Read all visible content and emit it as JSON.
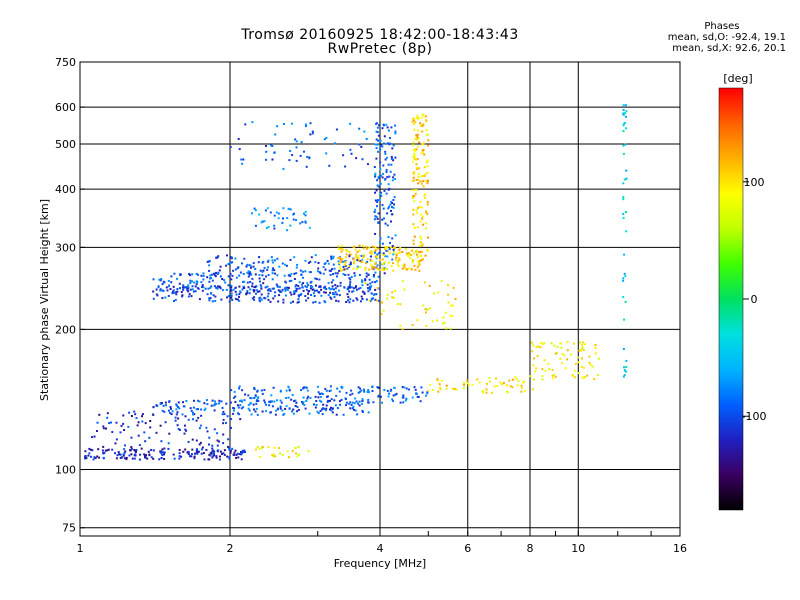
{
  "chart_data": {
    "type": "scatter",
    "title": "Tromsø 20160925 18:42:00-18:43:43",
    "subtitle": "RwPretec (8p)",
    "xlabel": "Frequency [MHz]",
    "ylabel": "Stationary phase Virtual Height [km]",
    "x_scale": "log",
    "y_scale": "log",
    "xlim": [
      1,
      16
    ],
    "ylim": [
      72,
      750
    ],
    "xticks": [
      1,
      2,
      4,
      6,
      8,
      10,
      16
    ],
    "yticks": [
      75,
      100,
      200,
      300,
      400,
      500,
      600,
      750
    ],
    "grid": true,
    "phases": {
      "title": "Phases",
      "o_line": "mean, sd,O: -92.4, 19.1",
      "x_line": "mean, sd,X:  92.6, 20.1"
    },
    "colorbar": {
      "label": "[deg]",
      "ticks": [
        100,
        0,
        -100
      ],
      "range": [
        -180,
        180
      ],
      "colors": [
        "#000000",
        "#3a0060",
        "#2020c0",
        "#0060ff",
        "#00b4ff",
        "#00e0e0",
        "#00e060",
        "#40ff00",
        "#c0ff00",
        "#ffff00",
        "#ffb000",
        "#ff6000",
        "#ff0000"
      ]
    },
    "series": [
      {
        "x_range": [
          1.02,
          2.15
        ],
        "y_center": 108,
        "y_jitter": 3,
        "phase": -120,
        "n": 170
      },
      {
        "x_range": [
          1.05,
          2.1
        ],
        "y_center": 122,
        "y_jitter": 12,
        "phase": -115,
        "n": 110
      },
      {
        "x_range": [
          1.4,
          3.8
        ],
        "y_center": 136,
        "y_jitter": 5,
        "phase": -95,
        "n": 180
      },
      {
        "x_range": [
          2.0,
          5.0
        ],
        "y_center": 145,
        "y_jitter": 6,
        "phase": -90,
        "n": 160
      },
      {
        "x_range": [
          5.0,
          8.2
        ],
        "y_center": 152,
        "y_jitter": 6,
        "phase": 100,
        "n": 60
      },
      {
        "x_range": [
          8.0,
          11.0
        ],
        "y_center": 172,
        "y_jitter": 16,
        "phase": 90,
        "n": 80
      },
      {
        "x_range": [
          2.25,
          2.9
        ],
        "y_center": 109,
        "y_jitter": 3,
        "phase": 85,
        "n": 25
      },
      {
        "x_range": [
          1.4,
          4.0
        ],
        "y_center": 238,
        "y_jitter": 10,
        "phase": -105,
        "n": 240
      },
      {
        "x_range": [
          1.4,
          4.0
        ],
        "y_center": 252,
        "y_jitter": 12,
        "phase": -100,
        "n": 220
      },
      {
        "x_range": [
          1.8,
          4.1
        ],
        "y_center": 275,
        "y_jitter": 14,
        "phase": -95,
        "n": 160
      },
      {
        "x_range": [
          3.3,
          4.9
        ],
        "y_center": 285,
        "y_jitter": 18,
        "phase": 105,
        "n": 170
      },
      {
        "x_range": [
          3.9,
          4.3
        ],
        "y_center": 420,
        "y_jitter": 140,
        "phase": -95,
        "n": 140
      },
      {
        "x_range": [
          4.65,
          5.0
        ],
        "y_center": 430,
        "y_jitter": 150,
        "phase": 105,
        "n": 150
      },
      {
        "x_range": [
          2.0,
          3.8
        ],
        "y_center": 500,
        "y_jitter": 60,
        "phase": -95,
        "n": 60
      },
      {
        "x_range": [
          2.2,
          2.9
        ],
        "y_center": 345,
        "y_jitter": 20,
        "phase": -80,
        "n": 40
      },
      {
        "x_range": [
          12.3,
          12.5
        ],
        "y_center": 380,
        "y_jitter": 230,
        "phase": -40,
        "n": 45
      },
      {
        "x_range": [
          3.7,
          5.7
        ],
        "y_center": 228,
        "y_jitter": 28,
        "phase": 95,
        "n": 50
      }
    ]
  }
}
